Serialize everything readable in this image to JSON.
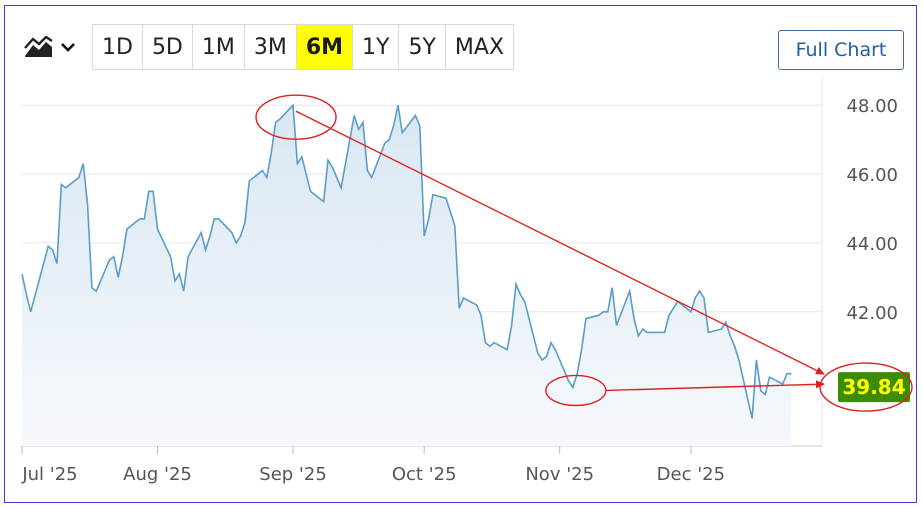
{
  "toolbar": {
    "chart_type_icon": "line-chart-icon",
    "dropdown_icon": "chevron-down-icon",
    "ranges": [
      "1D",
      "5D",
      "1M",
      "3M",
      "6M",
      "1Y",
      "5Y",
      "MAX"
    ],
    "active_range": "6M",
    "full_chart_label": "Full Chart"
  },
  "colors": {
    "line": "#5b9cc9",
    "area_top": "#d9e7f2",
    "area_bottom": "#f6f9fc",
    "grid": "#e6e6e6",
    "highlight": "#ffff00",
    "price_tag": "#3d8c00",
    "annotation": "#e02020",
    "border": "#3a3fcf"
  },
  "chart_data": {
    "type": "area",
    "ylim": [
      38.1,
      48.5
    ],
    "y_ticks": [
      42.0,
      44.0,
      46.0,
      48.0
    ],
    "y_tick_labels": [
      "42.00",
      "44.00",
      "46.00",
      "48.00"
    ],
    "x_tick_labels": [
      "Jul '25",
      "Aug '25",
      "Sep '25",
      "Oct '25",
      "Nov '25",
      "Dec '25"
    ],
    "x_tick_dates": [
      "2025-07-01",
      "2025-08-01",
      "2025-09-01",
      "2025-10-01",
      "2025-11-01",
      "2025-12-01"
    ],
    "x_range": [
      "2025-07-01",
      "2025-12-31"
    ],
    "grid": true,
    "last_price": 39.84,
    "last_price_label": "39.84",
    "series": [
      {
        "values": [
          [
            "2025-07-01",
            43.1
          ],
          [
            "2025-07-02",
            42.5
          ],
          [
            "2025-07-03",
            42.0
          ],
          [
            "2025-07-07",
            43.9
          ],
          [
            "2025-07-08",
            43.8
          ],
          [
            "2025-07-09",
            43.4
          ],
          [
            "2025-07-10",
            45.7
          ],
          [
            "2025-07-11",
            45.6
          ],
          [
            "2025-07-14",
            45.9
          ],
          [
            "2025-07-15",
            46.3
          ],
          [
            "2025-07-16",
            45.1
          ],
          [
            "2025-07-17",
            42.7
          ],
          [
            "2025-07-18",
            42.6
          ],
          [
            "2025-07-21",
            43.5
          ],
          [
            "2025-07-22",
            43.6
          ],
          [
            "2025-07-23",
            43.0
          ],
          [
            "2025-07-24",
            43.6
          ],
          [
            "2025-07-25",
            44.4
          ],
          [
            "2025-07-28",
            44.7
          ],
          [
            "2025-07-29",
            44.7
          ],
          [
            "2025-07-30",
            45.5
          ],
          [
            "2025-07-31",
            45.5
          ],
          [
            "2025-08-01",
            44.4
          ],
          [
            "2025-08-04",
            43.6
          ],
          [
            "2025-08-05",
            42.9
          ],
          [
            "2025-08-06",
            43.1
          ],
          [
            "2025-08-07",
            42.6
          ],
          [
            "2025-08-08",
            43.6
          ],
          [
            "2025-08-11",
            44.3
          ],
          [
            "2025-08-12",
            43.8
          ],
          [
            "2025-08-13",
            44.2
          ],
          [
            "2025-08-14",
            44.7
          ],
          [
            "2025-08-15",
            44.7
          ],
          [
            "2025-08-18",
            44.3
          ],
          [
            "2025-08-19",
            44.0
          ],
          [
            "2025-08-20",
            44.2
          ],
          [
            "2025-08-21",
            44.6
          ],
          [
            "2025-08-22",
            45.8
          ],
          [
            "2025-08-25",
            46.1
          ],
          [
            "2025-08-26",
            45.9
          ],
          [
            "2025-08-27",
            46.6
          ],
          [
            "2025-08-28",
            47.5
          ],
          [
            "2025-08-29",
            47.6
          ],
          [
            "2025-09-01",
            48.0
          ],
          [
            "2025-09-02",
            46.3
          ],
          [
            "2025-09-03",
            46.5
          ],
          [
            "2025-09-04",
            46.0
          ],
          [
            "2025-09-05",
            45.5
          ],
          [
            "2025-09-08",
            45.2
          ],
          [
            "2025-09-09",
            46.4
          ],
          [
            "2025-09-10",
            46.2
          ],
          [
            "2025-09-11",
            45.9
          ],
          [
            "2025-09-12",
            45.6
          ],
          [
            "2025-09-15",
            47.7
          ],
          [
            "2025-09-16",
            47.3
          ],
          [
            "2025-09-17",
            47.5
          ],
          [
            "2025-09-18",
            46.1
          ],
          [
            "2025-09-19",
            45.9
          ],
          [
            "2025-09-22",
            46.9
          ],
          [
            "2025-09-23",
            47.0
          ],
          [
            "2025-09-24",
            47.4
          ],
          [
            "2025-09-25",
            48.0
          ],
          [
            "2025-09-26",
            47.2
          ],
          [
            "2025-09-29",
            47.7
          ],
          [
            "2025-09-30",
            47.4
          ],
          [
            "2025-10-01",
            44.2
          ],
          [
            "2025-10-02",
            44.7
          ],
          [
            "2025-10-03",
            45.4
          ],
          [
            "2025-10-06",
            45.3
          ],
          [
            "2025-10-07",
            44.9
          ],
          [
            "2025-10-08",
            44.5
          ],
          [
            "2025-10-09",
            42.1
          ],
          [
            "2025-10-10",
            42.4
          ],
          [
            "2025-10-13",
            42.2
          ],
          [
            "2025-10-14",
            41.9
          ],
          [
            "2025-10-15",
            41.1
          ],
          [
            "2025-10-16",
            41.0
          ],
          [
            "2025-10-17",
            41.1
          ],
          [
            "2025-10-20",
            40.9
          ],
          [
            "2025-10-21",
            41.6
          ],
          [
            "2025-10-22",
            42.8
          ],
          [
            "2025-10-23",
            42.5
          ],
          [
            "2025-10-24",
            42.3
          ],
          [
            "2025-10-27",
            40.8
          ],
          [
            "2025-10-28",
            40.6
          ],
          [
            "2025-10-29",
            40.7
          ],
          [
            "2025-10-30",
            41.1
          ],
          [
            "2025-10-31",
            40.9
          ],
          [
            "2025-11-03",
            40.0
          ],
          [
            "2025-11-04",
            39.8
          ],
          [
            "2025-11-05",
            40.2
          ],
          [
            "2025-11-06",
            40.9
          ],
          [
            "2025-11-07",
            41.8
          ],
          [
            "2025-11-10",
            41.9
          ],
          [
            "2025-11-11",
            42.0
          ],
          [
            "2025-11-12",
            42.0
          ],
          [
            "2025-11-13",
            42.7
          ],
          [
            "2025-11-14",
            41.6
          ],
          [
            "2025-11-17",
            42.6
          ],
          [
            "2025-11-18",
            41.8
          ],
          [
            "2025-11-19",
            41.3
          ],
          [
            "2025-11-20",
            41.5
          ],
          [
            "2025-11-21",
            41.4
          ],
          [
            "2025-11-24",
            41.4
          ],
          [
            "2025-11-25",
            41.4
          ],
          [
            "2025-11-26",
            41.9
          ],
          [
            "2025-11-28",
            42.3
          ],
          [
            "2025-12-01",
            42.0
          ],
          [
            "2025-12-02",
            42.4
          ],
          [
            "2025-12-03",
            42.6
          ],
          [
            "2025-12-04",
            42.4
          ],
          [
            "2025-12-05",
            41.4
          ],
          [
            "2025-12-08",
            41.5
          ],
          [
            "2025-12-09",
            41.7
          ],
          [
            "2025-12-10",
            41.3
          ],
          [
            "2025-12-11",
            41.0
          ],
          [
            "2025-12-12",
            40.6
          ],
          [
            "2025-12-15",
            38.9
          ],
          [
            "2025-12-16",
            40.6
          ],
          [
            "2025-12-17",
            39.7
          ],
          [
            "2025-12-18",
            39.6
          ],
          [
            "2025-12-19",
            40.1
          ],
          [
            "2025-12-22",
            39.9
          ],
          [
            "2025-12-23",
            40.2
          ],
          [
            "2025-12-24",
            40.2
          ]
        ]
      }
    ]
  }
}
